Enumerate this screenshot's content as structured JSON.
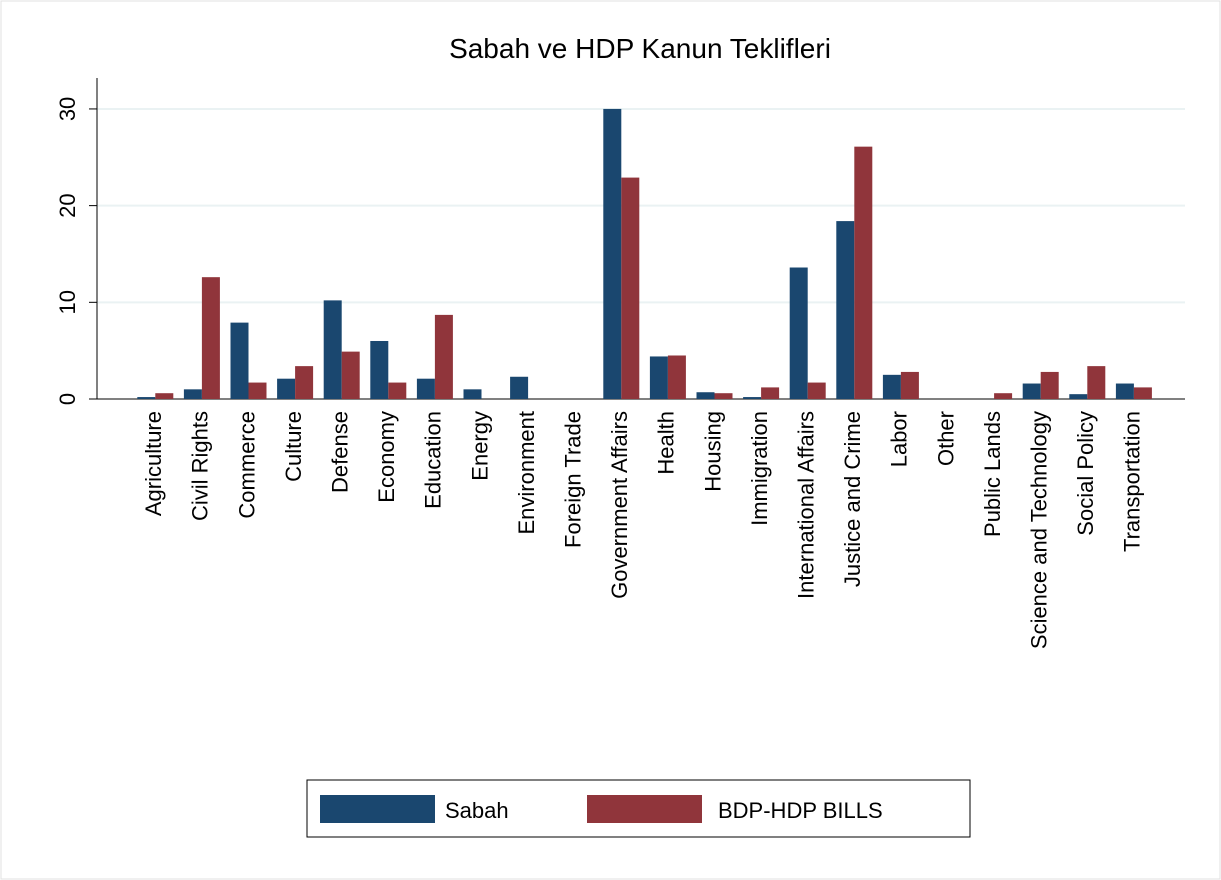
{
  "chart_data": {
    "type": "bar",
    "title": "Sabah ve HDP Kanun Teklifleri",
    "categories": [
      "Agriculture",
      "Civil Rights",
      "Commerce",
      "Culture",
      "Defense",
      "Economy",
      "Education",
      "Energy",
      "Environment",
      "Foreign Trade",
      "Government Affairs",
      "Health",
      "Housing",
      "Immigration",
      "International Affairs",
      "Justice and Crime",
      "Labor",
      "Other",
      "Public Lands",
      "Science and Technology",
      "Social Policy",
      "Transportation"
    ],
    "series": [
      {
        "name": "Sabah",
        "color": "#1a476f",
        "values": [
          0.2,
          1.0,
          7.9,
          2.1,
          10.2,
          6.0,
          2.1,
          1.0,
          2.3,
          0,
          30,
          4.4,
          0.7,
          0.2,
          13.6,
          18.4,
          2.5,
          0,
          0,
          1.6,
          0.5,
          1.6
        ]
      },
      {
        "name": "BDP-HDP BILLS",
        "color": "#90353b",
        "values": [
          0.6,
          12.6,
          1.7,
          3.4,
          4.9,
          1.7,
          8.7,
          0,
          0,
          0,
          22.9,
          4.5,
          0.6,
          1.2,
          1.7,
          26.1,
          2.8,
          0,
          0.6,
          2.8,
          3.4,
          1.2
        ]
      }
    ],
    "ylim": [
      0,
      33.2
    ],
    "yticks": [
      0,
      10,
      20,
      30
    ],
    "grid": true,
    "legend": "bottom"
  }
}
